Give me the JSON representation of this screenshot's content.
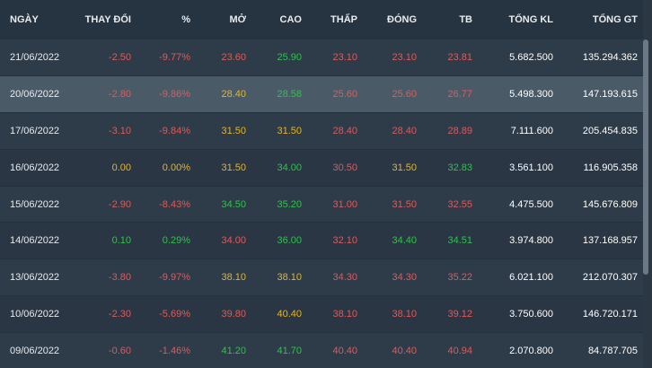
{
  "colors": {
    "red": "#e05a5a",
    "green": "#2ec34a",
    "yellow": "#e7b523"
  },
  "headers": [
    "NGÀY",
    "THAY ĐỔI",
    "%",
    "MỞ",
    "CAO",
    "THẤP",
    "ĐÓNG",
    "TB",
    "TỔNG KL",
    "TỔNG GT"
  ],
  "rows": [
    {
      "date": "21/06/2022",
      "change": "-2.50",
      "pct": "-9.77%",
      "open": "23.60",
      "high": "25.90",
      "low": "23.10",
      "close": "23.10",
      "avg": "23.81",
      "vol": "5.682.500",
      "val": "135.294.362",
      "c": {
        "change": "red",
        "pct": "red",
        "open": "red",
        "high": "green",
        "low": "red",
        "close": "red",
        "avg": "red"
      }
    },
    {
      "date": "20/06/2022",
      "change": "-2.80",
      "pct": "-9.86%",
      "open": "28.40",
      "high": "28.58",
      "low": "25.60",
      "close": "25.60",
      "avg": "26.77",
      "vol": "5.498.300",
      "val": "147.193.615",
      "c": {
        "change": "red",
        "pct": "red",
        "open": "yellow",
        "high": "green",
        "low": "red",
        "close": "red",
        "avg": "red"
      }
    },
    {
      "date": "17/06/2022",
      "change": "-3.10",
      "pct": "-9.84%",
      "open": "31.50",
      "high": "31.50",
      "low": "28.40",
      "close": "28.40",
      "avg": "28.89",
      "vol": "7.111.600",
      "val": "205.454.835",
      "c": {
        "change": "red",
        "pct": "red",
        "open": "yellow",
        "high": "yellow",
        "low": "red",
        "close": "red",
        "avg": "red"
      }
    },
    {
      "date": "16/06/2022",
      "change": "0.00",
      "pct": "0.00%",
      "open": "31.50",
      "high": "34.00",
      "low": "30.50",
      "close": "31.50",
      "avg": "32.83",
      "vol": "3.561.100",
      "val": "116.905.358",
      "c": {
        "change": "yellow",
        "pct": "yellow",
        "open": "yellow",
        "high": "green",
        "low": "red",
        "close": "yellow",
        "avg": "green"
      }
    },
    {
      "date": "15/06/2022",
      "change": "-2.90",
      "pct": "-8.43%",
      "open": "34.50",
      "high": "35.20",
      "low": "31.00",
      "close": "31.50",
      "avg": "32.55",
      "vol": "4.475.500",
      "val": "145.676.809",
      "c": {
        "change": "red",
        "pct": "red",
        "open": "green",
        "high": "green",
        "low": "red",
        "close": "red",
        "avg": "red"
      }
    },
    {
      "date": "14/06/2022",
      "change": "0.10",
      "pct": "0.29%",
      "open": "34.00",
      "high": "36.00",
      "low": "32.10",
      "close": "34.40",
      "avg": "34.51",
      "vol": "3.974.800",
      "val": "137.168.957",
      "c": {
        "change": "green",
        "pct": "green",
        "open": "red",
        "high": "green",
        "low": "red",
        "close": "green",
        "avg": "green"
      }
    },
    {
      "date": "13/06/2022",
      "change": "-3.80",
      "pct": "-9.97%",
      "open": "38.10",
      "high": "38.10",
      "low": "34.30",
      "close": "34.30",
      "avg": "35.22",
      "vol": "6.021.100",
      "val": "212.070.307",
      "c": {
        "change": "red",
        "pct": "red",
        "open": "yellow",
        "high": "yellow",
        "low": "red",
        "close": "red",
        "avg": "red"
      }
    },
    {
      "date": "10/06/2022",
      "change": "-2.30",
      "pct": "-5.69%",
      "open": "39.80",
      "high": "40.40",
      "low": "38.10",
      "close": "38.10",
      "avg": "39.12",
      "vol": "3.750.600",
      "val": "146.720.171",
      "c": {
        "change": "red",
        "pct": "red",
        "open": "red",
        "high": "yellow",
        "low": "red",
        "close": "red",
        "avg": "red"
      }
    },
    {
      "date": "09/06/2022",
      "change": "-0.60",
      "pct": "-1.46%",
      "open": "41.20",
      "high": "41.70",
      "low": "40.40",
      "close": "40.40",
      "avg": "40.94",
      "vol": "2.070.800",
      "val": "84.787.705",
      "c": {
        "change": "red",
        "pct": "red",
        "open": "green",
        "high": "green",
        "low": "red",
        "close": "red",
        "avg": "red"
      }
    }
  ]
}
